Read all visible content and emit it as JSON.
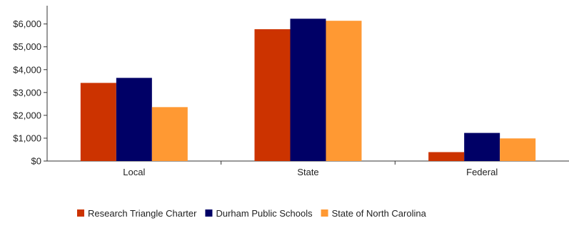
{
  "chart_data": {
    "type": "bar",
    "categories": [
      "Local",
      "State",
      "Federal"
    ],
    "series": [
      {
        "name": "Research Triangle Charter",
        "color": "#cc3300",
        "values": [
          3420,
          5770,
          390
        ]
      },
      {
        "name": "Durham Public Schools",
        "color": "#000066",
        "values": [
          3640,
          6230,
          1230
        ]
      },
      {
        "name": "State of North Carolina",
        "color": "#ff9933",
        "values": [
          2360,
          6140,
          990
        ]
      }
    ],
    "y_ticks": [
      0,
      1000,
      2000,
      3000,
      4000,
      5000,
      6000
    ],
    "y_tick_labels": [
      "$0",
      "$1,000",
      "$2,000",
      "$3,000",
      "$4,000",
      "$5,000",
      "$6,000"
    ],
    "ylim": [
      0,
      6800
    ],
    "grid": false,
    "legend_position": "bottom"
  }
}
